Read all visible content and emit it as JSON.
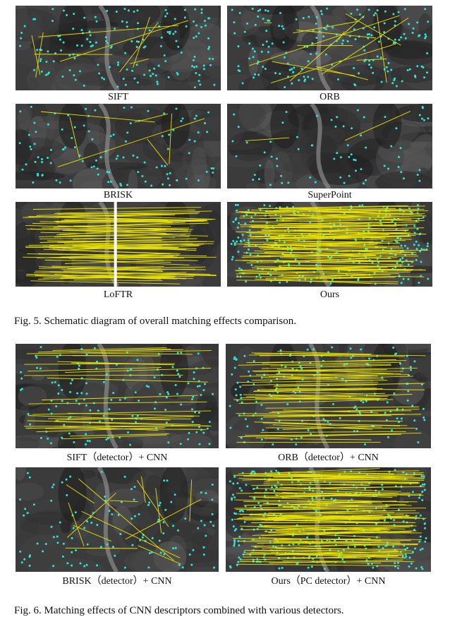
{
  "fig5": {
    "caption": "Fig. 5.   Schematic diagram of overall matching effects comparison.",
    "panels": [
      {
        "label": "SIFT",
        "lines": 8,
        "dots": 160
      },
      {
        "label": "ORB",
        "lines": 14,
        "dots": 180
      },
      {
        "label": "BRISK",
        "lines": 6,
        "dots": 110
      },
      {
        "label": "SuperPoint",
        "lines": 2,
        "dots": 70
      },
      {
        "label": "LoFTR",
        "lines": 90,
        "dots": 0
      },
      {
        "label": "Ours",
        "lines": 110,
        "dots": 340
      }
    ]
  },
  "fig6": {
    "caption": "Fig. 6.   Matching effects of CNN descriptors combined with various detectors.",
    "panels": [
      {
        "label": "SIFT（detector）+ CNN",
        "lines": 30,
        "dots": 150
      },
      {
        "label": "ORB（detector）+ CNN",
        "lines": 60,
        "dots": 170
      },
      {
        "label": "BRISK（detector）+ CNN",
        "lines": 14,
        "dots": 120
      },
      {
        "label": "Ours（PC detector）+ CNN",
        "lines": 120,
        "dots": 360
      }
    ]
  },
  "colors": {
    "match_line": "#e8e000",
    "keypoint": "#2ee6d6",
    "background": "#3a3a3a"
  }
}
